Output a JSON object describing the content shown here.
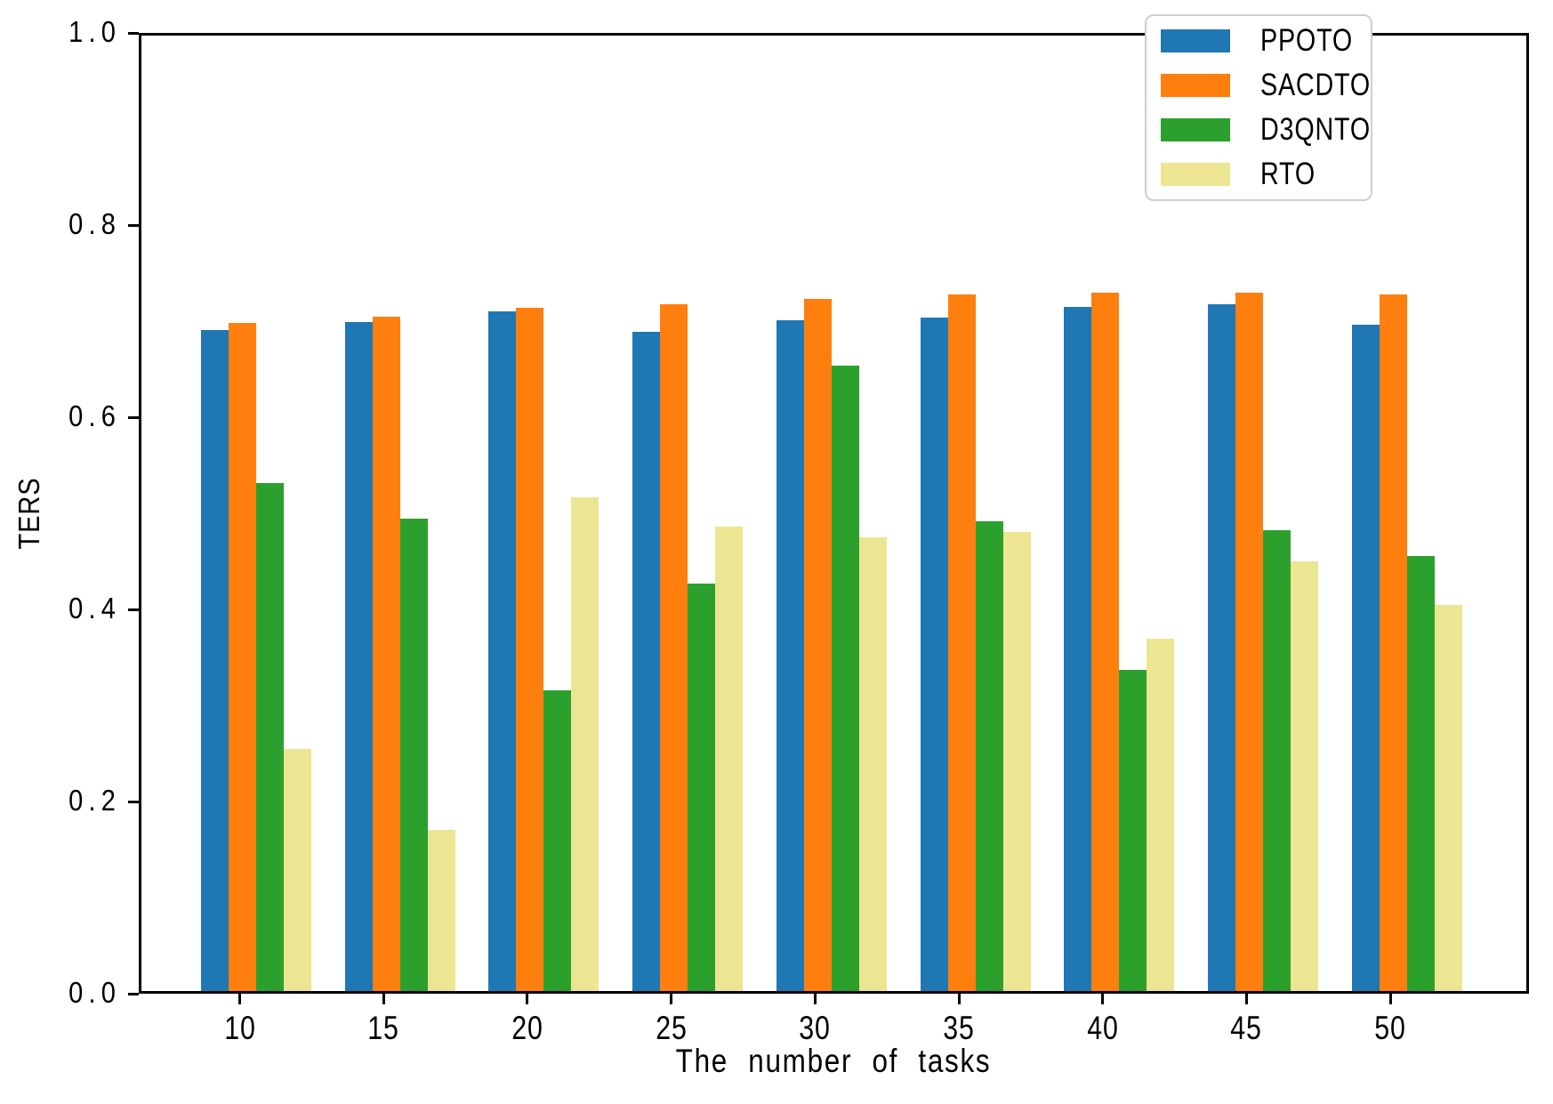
{
  "chart_data": {
    "type": "bar",
    "title": "",
    "xlabel": "The number of tasks",
    "ylabel": "TERS",
    "categories": [
      "10",
      "15",
      "20",
      "25",
      "30",
      "35",
      "40",
      "45",
      "50"
    ],
    "series": [
      {
        "name": "PPOTO",
        "color": "#1f77b4",
        "values": [
          0.692,
          0.7,
          0.711,
          0.69,
          0.702,
          0.705,
          0.716,
          0.719,
          0.697
        ]
      },
      {
        "name": "SACDTO",
        "color": "#ff7f0e",
        "values": [
          0.699,
          0.706,
          0.715,
          0.719,
          0.724,
          0.729,
          0.731,
          0.731,
          0.729
        ]
      },
      {
        "name": "D3QNTO",
        "color": "#2ca02c",
        "values": [
          0.532,
          0.494,
          0.315,
          0.426,
          0.655,
          0.492,
          0.336,
          0.482,
          0.455
        ]
      },
      {
        "name": "RTO",
        "color": "#ece591",
        "values": [
          0.253,
          0.169,
          0.517,
          0.486,
          0.475,
          0.48,
          0.369,
          0.45,
          0.404
        ]
      }
    ],
    "ylim": [
      0.0,
      1.0
    ],
    "yticks": [
      "0.0",
      "0.2",
      "0.4",
      "0.6",
      "0.8",
      "1.0"
    ],
    "grid": false,
    "legend_position": "upper right",
    "axis_color": "#000000",
    "legend_border_color": "#cfcfcf",
    "background_color": "#ffffff"
  }
}
